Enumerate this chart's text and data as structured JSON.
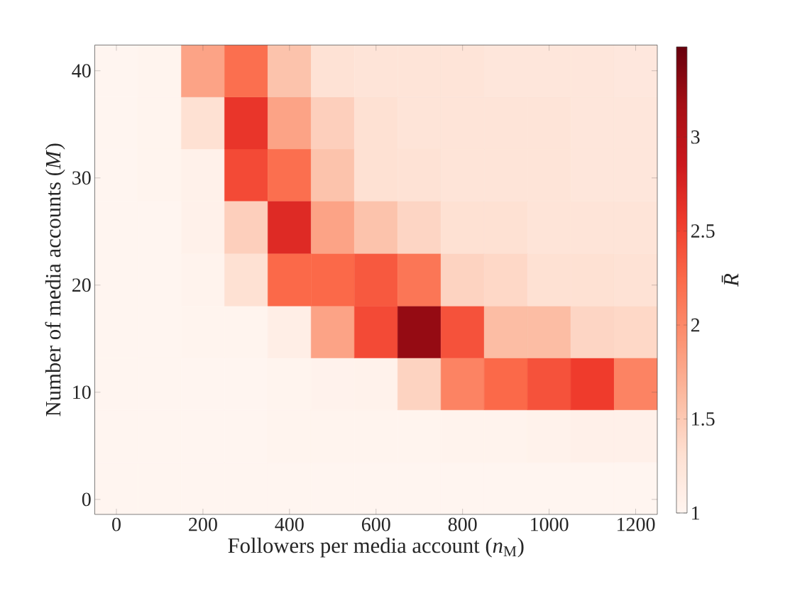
{
  "chart_data": {
    "type": "heatmap",
    "xlabel": "Followers per media account (*n*$_{M}$)",
    "ylabel": "Number of media accounts (*M*)",
    "clabel": "R̄",
    "x": [
      0,
      100,
      200,
      300,
      400,
      500,
      600,
      700,
      800,
      900,
      1000,
      1100,
      1200
    ],
    "y": [
      40,
      35.1,
      30.3,
      25.4,
      20.5,
      15.6,
      10.8,
      5.9,
      1
    ],
    "cells": [
      [
        1,
        1.02,
        1.8,
        2.2,
        1.55,
        1.28,
        1.25,
        1.25,
        1.25,
        1.22,
        1.22,
        1.22,
        1.2
      ],
      [
        1,
        1.02,
        1.3,
        2.6,
        1.8,
        1.45,
        1.3,
        1.25,
        1.25,
        1.25,
        1.25,
        1.22,
        1.22
      ],
      [
        1,
        1.02,
        1.06,
        2.45,
        2.2,
        1.55,
        1.3,
        1.28,
        1.25,
        1.25,
        1.25,
        1.22,
        1.22
      ],
      [
        1,
        1,
        1.06,
        1.45,
        2.7,
        1.8,
        1.55,
        1.4,
        1.3,
        1.3,
        1.25,
        1.25,
        1.25
      ],
      [
        1,
        1,
        1.03,
        1.3,
        2.25,
        2.25,
        2.35,
        2.15,
        1.42,
        1.38,
        1.3,
        1.3,
        1.28
      ],
      [
        1,
        1,
        1.02,
        1.02,
        1.1,
        1.8,
        2.45,
        3.25,
        2.4,
        1.6,
        1.6,
        1.4,
        1.38
      ],
      [
        1,
        1,
        1,
        1,
        1.02,
        1.04,
        1.05,
        1.42,
        2.05,
        2.25,
        2.4,
        2.55,
        2.05
      ],
      [
        1,
        1,
        1,
        1,
        1.02,
        1.02,
        1.02,
        1.02,
        1.03,
        1.03,
        1.05,
        1.07,
        1.07
      ],
      [
        1,
        1,
        1,
        1,
        1,
        1,
        1,
        1,
        1,
        1,
        1,
        1,
        1
      ]
    ],
    "xlim": [
      -50,
      1250
    ],
    "ylim": [
      -1.4,
      42.4
    ],
    "xticks": [
      0,
      200,
      400,
      600,
      800,
      1000,
      1200
    ],
    "yticks": [
      0,
      10,
      20,
      30,
      40
    ],
    "clim": [
      1,
      3.48
    ],
    "cticks": [
      1,
      1.5,
      2,
      2.5,
      3
    ]
  }
}
